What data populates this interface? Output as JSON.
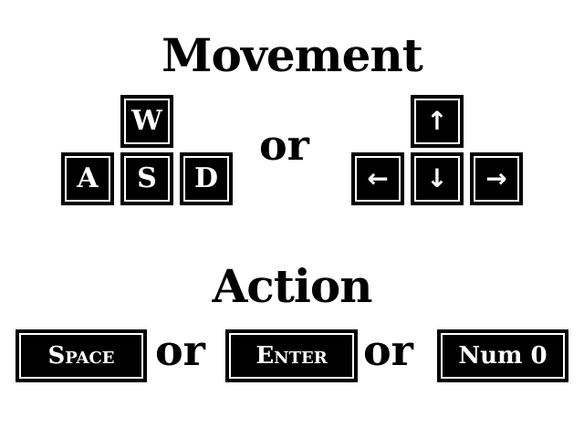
{
  "headings": {
    "movement": "Movement",
    "action": "Action"
  },
  "movement": {
    "wasd": {
      "w": "W",
      "a": "A",
      "s": "S",
      "d": "D"
    },
    "or_label": "or",
    "arrows": {
      "up": "↑",
      "left": "←",
      "down": "↓",
      "right": "→"
    }
  },
  "action": {
    "space": "Space",
    "or_1": "or",
    "enter": "Enter",
    "or_2": "or",
    "num0": "Num 0"
  },
  "colors": {
    "background": "#ffffff",
    "key_fill": "#000000",
    "key_text": "#ffffff",
    "text": "#000000"
  },
  "icons": [
    "arrow-up-icon",
    "arrow-left-icon",
    "arrow-down-icon",
    "arrow-right-icon"
  ]
}
